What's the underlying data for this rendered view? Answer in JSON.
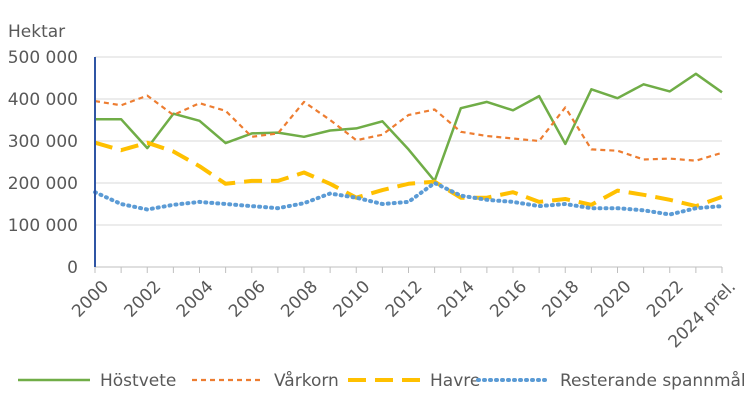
{
  "chart_data": {
    "type": "line",
    "title": "",
    "ylabel": "Hektar",
    "xlabel": "",
    "ylim": [
      0,
      500000
    ],
    "yticks": [
      0,
      100000,
      200000,
      300000,
      400000,
      500000
    ],
    "ytick_labels": [
      "0",
      "100 000",
      "200 000",
      "300 000",
      "400 000",
      "500 000"
    ],
    "grid": true,
    "legend_position": "bottom",
    "x": [
      "2000",
      "2001",
      "2002",
      "2003",
      "2004",
      "2005",
      "2006",
      "2007",
      "2008",
      "2009",
      "2010",
      "2011",
      "2012",
      "2013",
      "2014",
      "2015",
      "2016",
      "2017",
      "2018",
      "2019",
      "2020",
      "2021",
      "2022",
      "2023",
      "2024 prel."
    ],
    "xtick_labels": [
      "2000",
      "",
      "2002",
      "",
      "2004",
      "",
      "2006",
      "",
      "2008",
      "",
      "2010",
      "",
      "2012",
      "",
      "2014",
      "",
      "2016",
      "",
      "2018",
      "",
      "2020",
      "",
      "2022",
      "",
      "2024 prel."
    ],
    "series": [
      {
        "name": "Höstvete",
        "color": "#70ad47",
        "style": "solid",
        "values": [
          352000,
          352000,
          283000,
          365000,
          348000,
          295000,
          318000,
          320000,
          310000,
          325000,
          330000,
          347000,
          280000,
          205000,
          378000,
          393000,
          373000,
          407000,
          293000,
          423000,
          402000,
          435000,
          418000,
          460000,
          416000
        ]
      },
      {
        "name": "Vårkorn",
        "color": "#ed7d31",
        "style": "dashed",
        "values": [
          395000,
          385000,
          408000,
          362000,
          390000,
          372000,
          310000,
          318000,
          393000,
          350000,
          302000,
          315000,
          362000,
          375000,
          322000,
          312000,
          306000,
          300000,
          380000,
          280000,
          277000,
          256000,
          258000,
          253000,
          272000
        ]
      },
      {
        "name": "Havre",
        "color": "#ffc000",
        "style": "longdash",
        "values": [
          296000,
          278000,
          296000,
          275000,
          240000,
          198000,
          205000,
          205000,
          225000,
          198000,
          165000,
          183000,
          198000,
          203000,
          165000,
          165000,
          178000,
          155000,
          162000,
          148000,
          182000,
          172000,
          160000,
          145000,
          167000
        ]
      },
      {
        "name": "Resterande spannmål",
        "color": "#5b9bd5",
        "style": "dotted",
        "values": [
          178000,
          150000,
          137000,
          148000,
          155000,
          150000,
          145000,
          140000,
          152000,
          175000,
          165000,
          150000,
          155000,
          200000,
          170000,
          160000,
          155000,
          145000,
          150000,
          140000,
          140000,
          135000,
          125000,
          140000,
          145000
        ]
      }
    ]
  }
}
